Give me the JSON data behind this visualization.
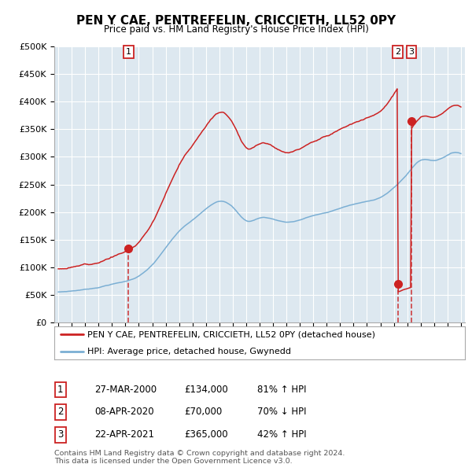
{
  "title": "PEN Y CAE, PENTREFELIN, CRICCIETH, LL52 0PY",
  "subtitle": "Price paid vs. HM Land Registry's House Price Index (HPI)",
  "legend_label_red": "PEN Y CAE, PENTREFELIN, CRICCIETH, LL52 0PY (detached house)",
  "legend_label_blue": "HPI: Average price, detached house, Gwynedd",
  "footer_line1": "Contains HM Land Registry data © Crown copyright and database right 2024.",
  "footer_line2": "This data is licensed under the Open Government Licence v3.0.",
  "t1_year": 2000.23,
  "t2_year": 2020.3,
  "t3_year": 2021.31,
  "price_t1": 134000,
  "price_t2": 70000,
  "price_t3": 365000,
  "ylim": [
    0,
    500000
  ],
  "yticks": [
    0,
    50000,
    100000,
    150000,
    200000,
    250000,
    300000,
    350000,
    400000,
    450000,
    500000
  ],
  "xlim_start": 1994.7,
  "xlim_end": 2025.3,
  "hpi_color": "#7bafd4",
  "price_color": "#cc2222",
  "chart_bg_color": "#dde8f0",
  "background_color": "#ffffff",
  "grid_color": "#ffffff"
}
